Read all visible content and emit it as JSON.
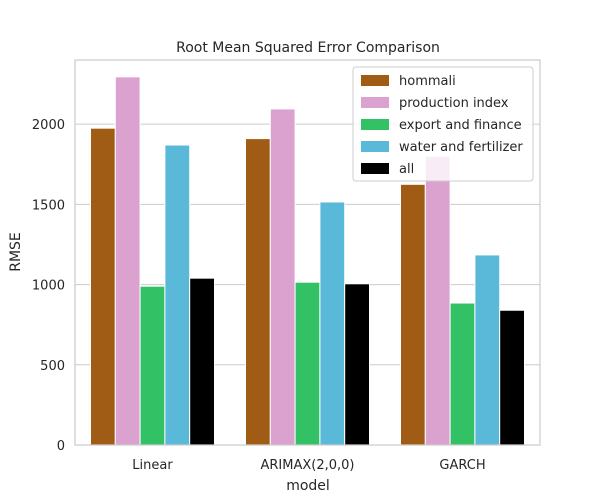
{
  "chart_data": {
    "type": "bar",
    "title": "Root Mean Squared Error Comparison",
    "xlabel": "model",
    "ylabel": "RMSE",
    "categories": [
      "Linear",
      "ARIMAX(2,0,0)",
      "GARCH"
    ],
    "ylim": [
      0,
      2400
    ],
    "yticks": [
      0,
      500,
      1000,
      1500,
      2000
    ],
    "grid": "horizontal",
    "legend_position": "top-right",
    "series": [
      {
        "name": "hommali",
        "color": "#a05c14",
        "values": [
          1975,
          1910,
          1625
        ]
      },
      {
        "name": "production index",
        "color": "#dba2cf",
        "values": [
          2295,
          2095,
          1800
        ]
      },
      {
        "name": "export and finance",
        "color": "#33c166",
        "values": [
          990,
          1015,
          885
        ]
      },
      {
        "name": "water and fertilizer",
        "color": "#5ab9d9",
        "values": [
          1870,
          1515,
          1185
        ]
      },
      {
        "name": "all",
        "color": "#000000",
        "values": [
          1040,
          1005,
          840
        ]
      }
    ]
  }
}
